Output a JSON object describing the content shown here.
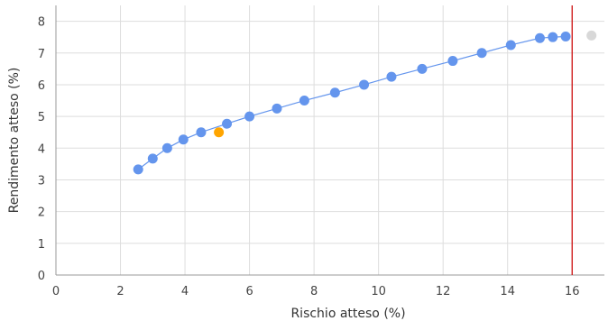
{
  "chart_data": {
    "type": "scatter",
    "xlabel": "Rischio atteso (%)",
    "ylabel": "Rendimento atteso (%)",
    "xlim": [
      0,
      17
    ],
    "ylim": [
      0,
      8.5
    ],
    "x_ticks": [
      "0",
      "2",
      "4",
      "6",
      "8",
      "10",
      "12",
      "14",
      "16"
    ],
    "y_ticks": [
      "0",
      "1",
      "2",
      "3",
      "4",
      "5",
      "6",
      "7",
      "8"
    ],
    "grid": true,
    "colors": {
      "frontier": "#6495ED",
      "highlight": "#FFA500",
      "excluded": "#D8D8D8",
      "limit_line": "#CC0000",
      "grid": "#DDDDDD"
    },
    "series": [
      {
        "type": "line+scatter",
        "x": [
          2.55,
          3.0,
          3.45,
          3.95,
          4.5,
          5.3,
          6.0,
          6.85,
          7.7,
          8.65,
          9.55,
          10.4,
          11.35,
          12.3,
          13.2,
          14.1,
          15.0,
          15.4,
          15.8
        ],
        "y": [
          3.33,
          3.67,
          4.0,
          4.27,
          4.5,
          4.77,
          5.0,
          5.25,
          5.5,
          5.75,
          6.0,
          6.25,
          6.5,
          6.75,
          7.0,
          7.25,
          7.47,
          7.5,
          7.52
        ]
      },
      {
        "type": "scatter",
        "x": [
          5.05
        ],
        "y": [
          4.5
        ]
      },
      {
        "type": "scatter",
        "x": [
          16.6
        ],
        "y": [
          7.55
        ]
      }
    ],
    "limit_x": 16.0
  }
}
